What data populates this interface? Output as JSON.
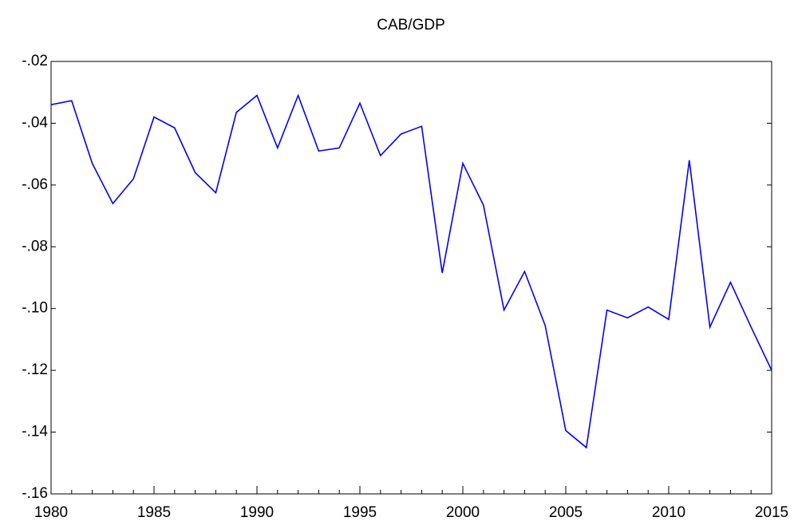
{
  "chart_data": {
    "type": "line",
    "title": "CAB/GDP",
    "x": [
      1980,
      1981,
      1982,
      1983,
      1984,
      1985,
      1986,
      1987,
      1988,
      1989,
      1990,
      1991,
      1992,
      1993,
      1994,
      1995,
      1996,
      1997,
      1998,
      1999,
      2000,
      2001,
      2002,
      2003,
      2004,
      2005,
      2006,
      2007,
      2008,
      2009,
      2010,
      2011,
      2012,
      2013,
      2014,
      2015
    ],
    "series": [
      {
        "name": "CAB/GDP",
        "color": "#0000ff",
        "values": [
          -0.034,
          -0.0327,
          -0.053,
          -0.066,
          -0.058,
          -0.038,
          -0.0415,
          -0.056,
          -0.0625,
          -0.0365,
          -0.031,
          -0.048,
          -0.031,
          -0.049,
          -0.048,
          -0.0335,
          -0.0505,
          -0.0435,
          -0.041,
          -0.0885,
          -0.053,
          -0.0665,
          -0.1005,
          -0.088,
          -0.1055,
          -0.1395,
          -0.145,
          -0.1005,
          -0.103,
          -0.0995,
          -0.1035,
          -0.052,
          -0.106,
          -0.0915,
          -0.106,
          -0.12
        ]
      }
    ],
    "xlim": [
      1980,
      2015
    ],
    "xticks": [
      1980,
      1985,
      1990,
      1995,
      2000,
      2005,
      2010,
      2015
    ],
    "ylim": [
      -0.16,
      -0.02
    ],
    "yticks": [
      {
        "value": -0.16,
        "label": "-.16"
      },
      {
        "value": -0.14,
        "label": "-.14"
      },
      {
        "value": -0.12,
        "label": "-.12"
      },
      {
        "value": -0.1,
        "label": "-.10"
      },
      {
        "value": -0.08,
        "label": "-.08"
      },
      {
        "value": -0.06,
        "label": "-.06"
      },
      {
        "value": -0.04,
        "label": "-.04"
      },
      {
        "value": -0.02,
        "label": "-.02"
      }
    ],
    "grid": false
  }
}
